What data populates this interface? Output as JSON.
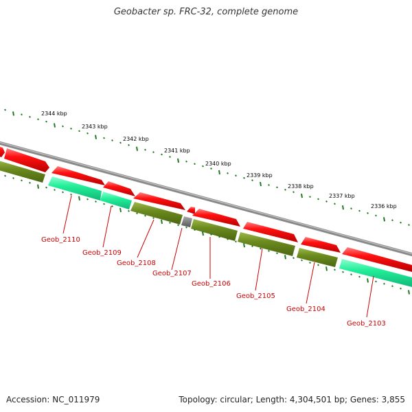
{
  "title": "Geobacter sp. FRC-32, complete genome",
  "footer": {
    "accession": "Accession: NC_011979",
    "stats": "Topology: circular; Length: 4,304,501 bp; Genes: 3,855"
  },
  "colors": {
    "backbone": "#8a8a8a",
    "cds_forward": "#ee1111",
    "cds_reverse": "#6b8a1e",
    "cds_teal": "#22ee99",
    "cds_gray": "#777777",
    "tick": "#1f7a1f",
    "label": "#cc0000"
  },
  "kbp_ticks": [
    "2344 kbp",
    "2343 kbp",
    "2342 kbp",
    "2341 kbp",
    "2340 kbp",
    "2339 kbp",
    "2338 kbp",
    "2337 kbp",
    "2336 kbp"
  ],
  "genes": [
    "Geob_2110",
    "Geob_2109",
    "Geob_2108",
    "Geob_2107",
    "Geob_2106",
    "Geob_2105",
    "Geob_2104",
    "Geob_2103"
  ]
}
